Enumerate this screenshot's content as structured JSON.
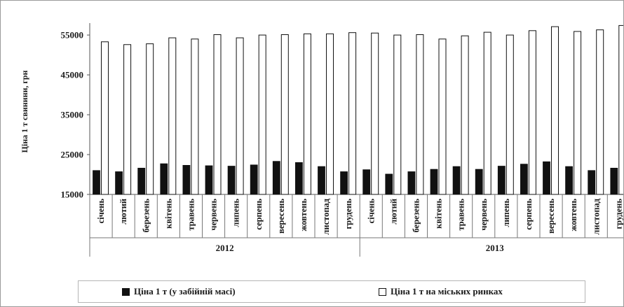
{
  "chart_data": {
    "type": "bar",
    "ylabel": "Ціна 1 т свинини, грн",
    "xlabel": "",
    "ylim": [
      15000,
      58000
    ],
    "yticks": [
      15000,
      25000,
      35000,
      45000,
      55000
    ],
    "yticks_labels": [
      "15000",
      "25000",
      "35000",
      "45000",
      "55000"
    ],
    "grid": false,
    "legend_position": "bottom",
    "categories": [
      "січень",
      "лютий",
      "березень",
      "квітень",
      "травень",
      "червень",
      "липень",
      "серпень",
      "вересень",
      "жовтень",
      "листопад",
      "грудень",
      "січень",
      "лютий",
      "березень",
      "квітень",
      "травень",
      "червень",
      "липень",
      "серпень",
      "вересень",
      "жовтень",
      "листопад",
      "грудень"
    ],
    "groups": [
      {
        "label": "2012",
        "count": 12
      },
      {
        "label": "2013",
        "count": 12
      }
    ],
    "series": [
      {
        "name": "Ціна 1 т (у забійній масі)",
        "color": "#111111",
        "values": [
          21000,
          20700,
          21600,
          22700,
          22300,
          22200,
          22100,
          22400,
          23300,
          23000,
          22000,
          20700,
          21200,
          20100,
          20700,
          21300,
          22000,
          21300,
          22100,
          22600,
          23200,
          22000,
          21000,
          21600
        ]
      },
      {
        "name": "Ціна 1 т на міських ринках",
        "color": "#ffffff",
        "values": [
          53300,
          52600,
          52800,
          54300,
          54000,
          55100,
          54300,
          55000,
          55100,
          55300,
          55300,
          55600,
          55500,
          55000,
          55100,
          54000,
          54800,
          55700,
          55000,
          56100,
          57100,
          55900,
          56300,
          57400
        ]
      }
    ]
  }
}
